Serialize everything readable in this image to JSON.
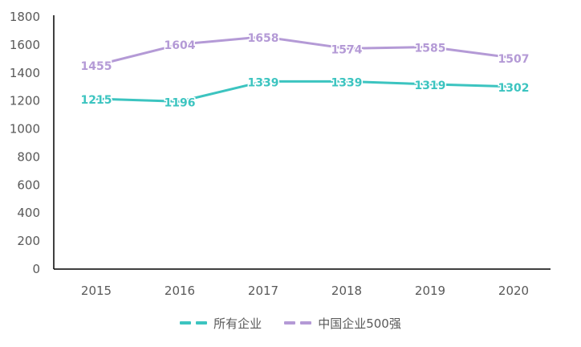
{
  "chart_data": {
    "type": "line",
    "title": "",
    "xlabel": "",
    "ylabel": "",
    "categories": [
      "2015",
      "2016",
      "2017",
      "2018",
      "2019",
      "2020"
    ],
    "ylim": [
      0,
      1800
    ],
    "yticks": [
      0,
      200,
      400,
      600,
      800,
      1000,
      1200,
      1400,
      1600,
      1800
    ],
    "grid": false,
    "legend_position": "bottom",
    "series": [
      {
        "name": "所有企业",
        "color": "#3cc4c0",
        "values": [
          1215,
          1196,
          1339,
          1339,
          1319,
          1302
        ]
      },
      {
        "name": "中国企业500强",
        "color": "#b49ad6",
        "values": [
          1455,
          1604,
          1658,
          1574,
          1585,
          1507
        ]
      }
    ]
  }
}
